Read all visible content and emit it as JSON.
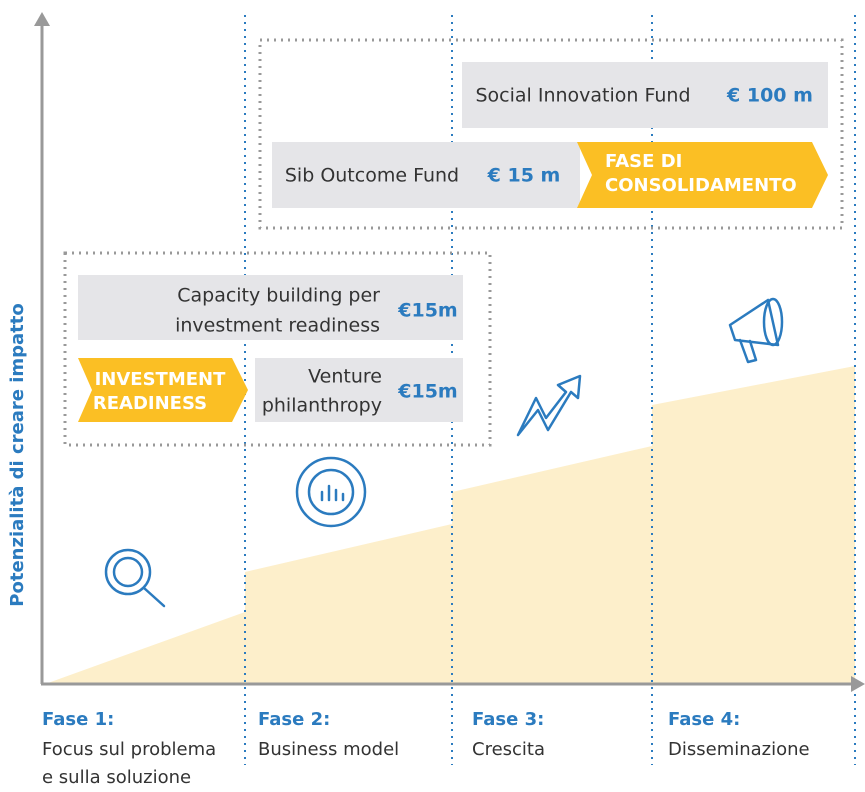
{
  "axis_label": "Potenzialità di creare impatto",
  "funds": [
    {
      "name": "Social Innovation Fund",
      "amount": "€ 100 m"
    },
    {
      "name": "Sib Outcome Fund",
      "amount": "€ 15 m"
    },
    {
      "name": [
        "Capacity building per",
        "investment readiness"
      ],
      "amount": "€15m"
    },
    {
      "name": [
        "Venture",
        "philanthropy"
      ],
      "amount": "€15m"
    }
  ],
  "stages": [
    [
      "FASE DI",
      "CONSOLIDAMENTO"
    ],
    [
      "INVESTMENT",
      "READINESS"
    ]
  ],
  "phases": [
    {
      "title": "Fase 1:",
      "desc": [
        "Focus sul problema",
        "e sulla soluzione"
      ]
    },
    {
      "title": "Fase 2:",
      "desc": [
        "Business model"
      ]
    },
    {
      "title": "Fase 3:",
      "desc": [
        "Crescita"
      ]
    },
    {
      "title": "Fase 4:",
      "desc": [
        "Disseminazione"
      ]
    }
  ]
}
